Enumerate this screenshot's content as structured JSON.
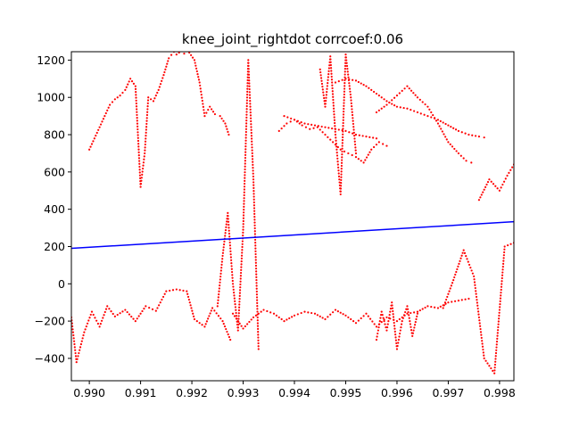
{
  "chart_data": {
    "type": "scatter",
    "title": "knee_joint_rightdot corrcoef:0.06",
    "xlabel": "",
    "ylabel": "",
    "xlim": [
      0.98965,
      0.99828
    ],
    "ylim": [
      -520,
      1245
    ],
    "x_ticks": [
      0.99,
      0.991,
      0.992,
      0.993,
      0.994,
      0.995,
      0.996,
      0.997,
      0.998
    ],
    "x_tick_labels": [
      "0.990",
      "0.991",
      "0.992",
      "0.993",
      "0.994",
      "0.995",
      "0.996",
      "0.997",
      "0.998"
    ],
    "y_ticks": [
      -400,
      -200,
      0,
      200,
      400,
      600,
      800,
      1000,
      1200
    ],
    "y_tick_labels": [
      "−400",
      "−200",
      "0",
      "200",
      "400",
      "600",
      "800",
      "1000",
      "1200"
    ],
    "grid": false,
    "colors": {
      "points": "#ff0000",
      "fit": "#0000ff",
      "axes": "#000000"
    },
    "fit_line": {
      "x": [
        0.98965,
        0.99828
      ],
      "y": [
        190,
        333
      ]
    },
    "scatter_traces": [
      {
        "x": [
          0.98965,
          0.98975,
          0.9899,
          0.99005,
          0.9902,
          0.99035,
          0.9905,
          0.9907,
          0.9909,
          0.9911,
          0.9913,
          0.9915,
          0.9917,
          0.9919,
          0.99205,
          0.99225,
          0.9924,
          0.9926,
          0.99275
        ],
        "y": [
          -180,
          -420,
          -260,
          -150,
          -230,
          -120,
          -175,
          -140,
          -200,
          -120,
          -145,
          -40,
          -30,
          -40,
          -190,
          -230,
          -130,
          -200,
          -300
        ]
      },
      {
        "x": [
          0.99,
          0.9901,
          0.9902,
          0.9903,
          0.9904,
          0.9905,
          0.9906,
          0.9907,
          0.9908,
          0.9909,
          0.991,
          0.99108,
          0.99115,
          0.99125,
          0.99135,
          0.99145,
          0.99155,
          0.99165,
          0.9917
        ],
        "y": [
          720,
          780,
          840,
          900,
          960,
          990,
          1010,
          1040,
          1100,
          1060,
          520,
          700,
          1000,
          980,
          1040,
          1120,
          1210,
          1245,
          1230
        ]
      },
      {
        "x": [
          0.99175,
          0.99185,
          0.99195,
          0.99205,
          0.99215,
          0.99225,
          0.99235,
          0.99245,
          0.99255,
          0.99265,
          0.99272
        ],
        "y": [
          1240,
          1235,
          1240,
          1200,
          1080,
          900,
          950,
          910,
          900,
          860,
          800
        ]
      },
      {
        "x": [
          0.9937,
          0.99385,
          0.994,
          0.99415,
          0.9943,
          0.99445,
          0.9946,
          0.99475,
          0.9949,
          0.99505,
          0.9952,
          0.99535,
          0.9955,
          0.99565,
          0.9958
        ],
        "y": [
          820,
          860,
          880,
          850,
          830,
          840,
          800,
          760,
          720,
          700,
          680,
          650,
          720,
          760,
          740
        ]
      },
      {
        "x": [
          0.9938,
          0.994,
          0.9942,
          0.9944,
          0.9946,
          0.9948,
          0.995,
          0.9952,
          0.9954,
          0.9956
        ],
        "y": [
          900,
          880,
          860,
          850,
          840,
          830,
          820,
          800,
          790,
          780
        ]
      },
      {
        "x": [
          0.9948,
          0.995,
          0.9952,
          0.9954,
          0.9956,
          0.9958,
          0.996,
          0.9962,
          0.9964,
          0.9966,
          0.9968,
          0.997,
          0.9972,
          0.9974,
          0.9976,
          0.9977
        ],
        "y": [
          1080,
          1100,
          1090,
          1060,
          1020,
          980,
          950,
          940,
          920,
          900,
          880,
          850,
          820,
          800,
          790,
          785
        ]
      },
      {
        "x": [
          0.9956,
          0.9958,
          0.996,
          0.9962,
          0.9964,
          0.9966,
          0.9968,
          0.997,
          0.9972,
          0.99735,
          0.99745
        ],
        "y": [
          920,
          960,
          1010,
          1060,
          1000,
          950,
          860,
          760,
          700,
          660,
          650
        ]
      },
      {
        "x": [
          0.9928,
          0.993,
          0.9932,
          0.9934,
          0.9936,
          0.9938,
          0.994,
          0.9942,
          0.9944,
          0.9946,
          0.9948,
          0.995,
          0.9952,
          0.9954,
          0.9956,
          0.9958,
          0.996,
          0.9962,
          0.9964,
          0.9966,
          0.9968,
          0.997,
          0.9972,
          0.9974
        ],
        "y": [
          -160,
          -240,
          -180,
          -140,
          -160,
          -200,
          -170,
          -150,
          -160,
          -190,
          -140,
          -170,
          -210,
          -160,
          -230,
          -180,
          -200,
          -160,
          -150,
          -120,
          -130,
          -100,
          -90,
          -80
        ]
      },
      {
        "x": [
          0.9956,
          0.9957,
          0.9958,
          0.9959,
          0.996,
          0.9961,
          0.9962,
          0.9963,
          0.9964
        ],
        "y": [
          -300,
          -150,
          -250,
          -100,
          -350,
          -200,
          -120,
          -280,
          -160
        ]
      },
      {
        "x": [
          0.9969,
          0.9971,
          0.9973,
          0.9975,
          0.9977,
          0.9979,
          0.9981,
          0.99828
        ],
        "y": [
          -130,
          20,
          180,
          40,
          -400,
          -480,
          200,
          220
        ]
      },
      {
        "x": [
          0.9976,
          0.9978,
          0.998,
          0.99815,
          0.99828
        ],
        "y": [
          450,
          560,
          500,
          580,
          640
        ]
      },
      {
        "x": [
          0.9925,
          0.9926,
          0.9927,
          0.9928,
          0.9929,
          0.993,
          0.9931,
          0.9932,
          0.9933
        ],
        "y": [
          -120,
          150,
          380,
          0,
          -250,
          290,
          1200,
          560,
          -350
        ]
      },
      {
        "x": [
          0.9945,
          0.9946,
          0.9947,
          0.9948,
          0.9949,
          0.995,
          0.9951,
          0.9952
        ],
        "y": [
          1150,
          950,
          1220,
          800,
          480,
          1230,
          1000,
          700
        ]
      }
    ]
  }
}
